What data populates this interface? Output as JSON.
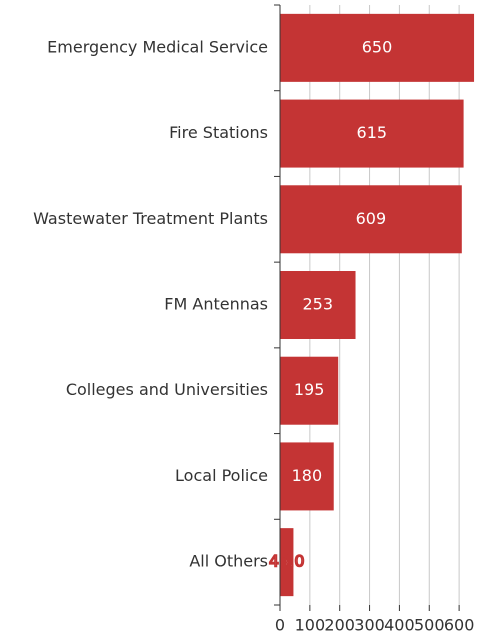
{
  "chart_data": {
    "type": "barh",
    "categories": [
      "Emergency Medical Service",
      "Fire Stations",
      "Wastewater Treatment Plants",
      "FM Antennas",
      "Colleges and Universities",
      "Local Police",
      "All Others"
    ],
    "values": [
      650,
      615,
      609,
      253,
      195,
      180,
      45
    ],
    "value_labels": [
      "650",
      "615",
      "609",
      "253",
      "195",
      "180",
      "45.0"
    ],
    "color": "#c43434",
    "xlim": [
      0,
      680
    ],
    "xticks": [
      0,
      100,
      200,
      300,
      400,
      500,
      600
    ],
    "grid": true
  }
}
